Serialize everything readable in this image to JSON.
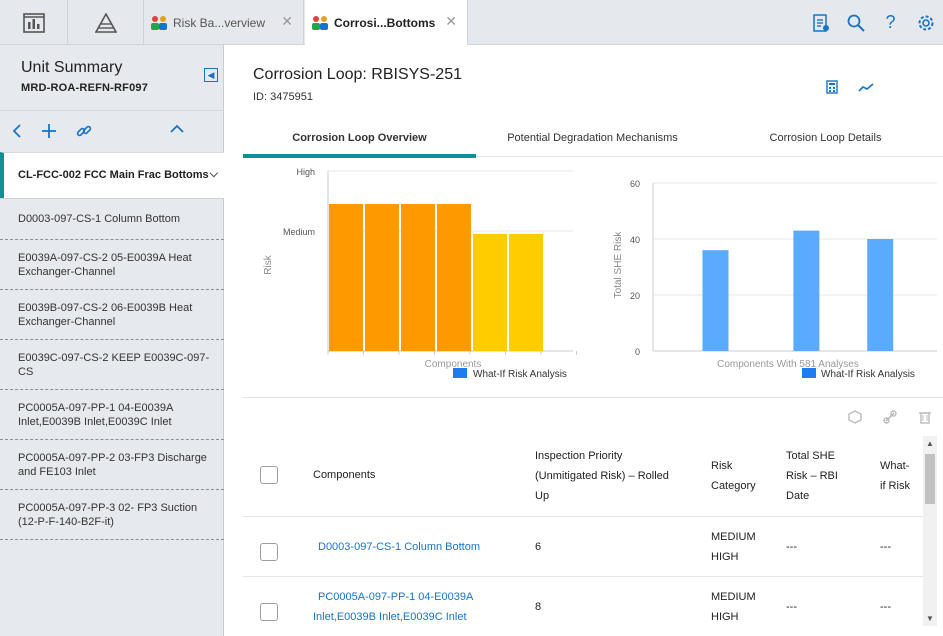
{
  "topbar": {
    "tabs": [
      {
        "label": "Risk Ba...verview"
      },
      {
        "label": "Corrosi...Bottoms"
      }
    ]
  },
  "left": {
    "title": "Unit Summary",
    "subtitle": "MRD-ROA-REFN-RF097",
    "selected": "CL-FCC-002 FCC Main Frac Bottoms",
    "items": [
      {
        "label": "D0003-097-CS-1 Column Bottom"
      },
      {
        "label": "E0039A-097-CS-2 05-E0039A Heat Exchanger-Channel"
      },
      {
        "label": "E0039B-097-CS-2 06-E0039B Heat Exchanger-Channel"
      },
      {
        "label": "E0039C-097-CS-2 KEEP E0039C-097-CS"
      },
      {
        "label": "PC0005A-097-PP-1 04-E0039A Inlet,E0039B Inlet,E0039C Inlet"
      },
      {
        "label": "PC0005A-097-PP-2 03-FP3 Discharge and FE103 Inlet"
      },
      {
        "label": "PC0005A-097-PP-3 02- FP3 Suction (12-P-F-140-B2F-it)"
      }
    ]
  },
  "main": {
    "title": "Corrosion Loop: RBISYS-251",
    "id": "ID: 3475951",
    "tabs": [
      {
        "label": "Corrosion Loop Overview"
      },
      {
        "label": "Potential Degradation Mechanisms"
      },
      {
        "label": "Corrosion Loop Details"
      }
    ]
  },
  "chart_data": [
    {
      "type": "bar",
      "ylabel": "Risk",
      "xlabel": "Components",
      "y_tick_labels": [
        "High",
        "Medium"
      ],
      "ylim": [
        0,
        3
      ],
      "legend": "What-If Risk Analysis",
      "values": [
        2.45,
        2.45,
        2.45,
        2.45,
        1.95,
        1.95
      ],
      "colors": [
        "#FF9900",
        "#FF9900",
        "#FF9900",
        "#FF9900",
        "#FFCC00",
        "#FFCC00"
      ]
    },
    {
      "type": "bar",
      "ylabel": "Total SHE Risk",
      "xlabel": "Components With 581 Analyses",
      "ylim": [
        0,
        60
      ],
      "y_ticks": [
        0,
        20,
        40,
        60
      ],
      "legend": "What-If Risk Analysis",
      "values": [
        36,
        43,
        40
      ],
      "colors": [
        "#5aabff",
        "#5aabff",
        "#5aabff"
      ]
    }
  ],
  "table": {
    "headers": {
      "components": "Components",
      "inspection_1": "Inspection Priority",
      "inspection_2": "(Unmitigated Risk) – Rolled",
      "inspection_3": "Up",
      "risk_1": "Risk",
      "risk_2": "Category",
      "she_1": "Total SHE",
      "she_2": "Risk – RBI",
      "she_3": "Date",
      "whatif_1": "What-",
      "whatif_2": "if Risk"
    },
    "rows": [
      {
        "component": "D0003-097-CS-1 Column Bottom",
        "component_2": "",
        "priority": "6",
        "risk_1": "MEDIUM",
        "risk_2": "HIGH",
        "she": "---",
        "whatif": "---"
      },
      {
        "component": "PC0005A-097-PP-1 04-E0039A",
        "component_2": "Inlet,E0039B Inlet,E0039C Inlet",
        "priority": "8",
        "risk_1": "MEDIUM",
        "risk_2": "HIGH",
        "she": "---",
        "whatif": "---"
      }
    ]
  },
  "colors": {
    "accent": "#0f8f98",
    "link": "#1a73c8",
    "orange": "#FF9900",
    "yellow": "#FFCC00",
    "blue": "#5aabff",
    "legend_blue": "#1e7cf0"
  }
}
